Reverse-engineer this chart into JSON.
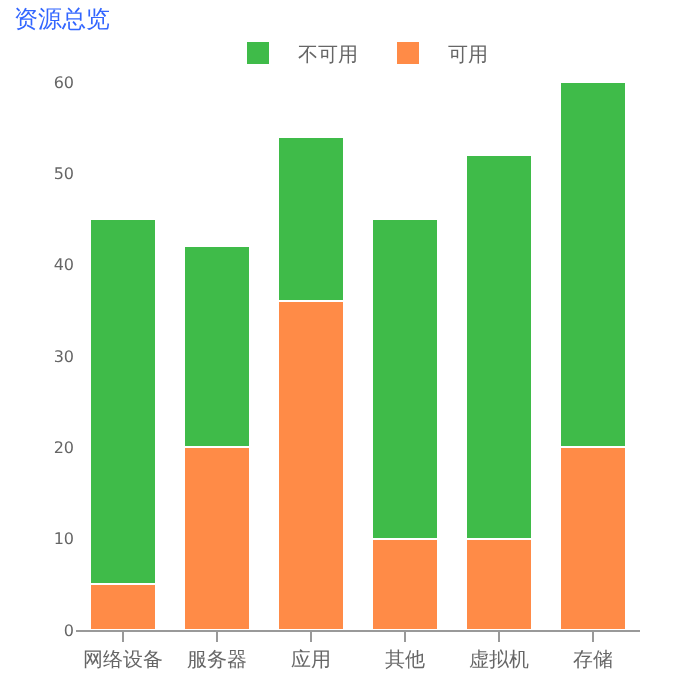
{
  "chart_data": {
    "type": "bar",
    "title": "资源总览",
    "stacked": true,
    "categories": [
      "网络设备",
      "服务器",
      "应用",
      "其他",
      "虚拟机",
      "存储"
    ],
    "series": [
      {
        "name": "可用",
        "color": "#ff8b47",
        "values": [
          5,
          20,
          36,
          10,
          10,
          20
        ]
      },
      {
        "name": "不可用",
        "color": "#3fbb49",
        "values": [
          40,
          22,
          18,
          35,
          42,
          40
        ]
      }
    ],
    "ylim": [
      0,
      60
    ],
    "yticks": [
      0,
      10,
      20,
      30,
      40,
      50,
      60
    ],
    "grid": false,
    "legend": "top"
  }
}
